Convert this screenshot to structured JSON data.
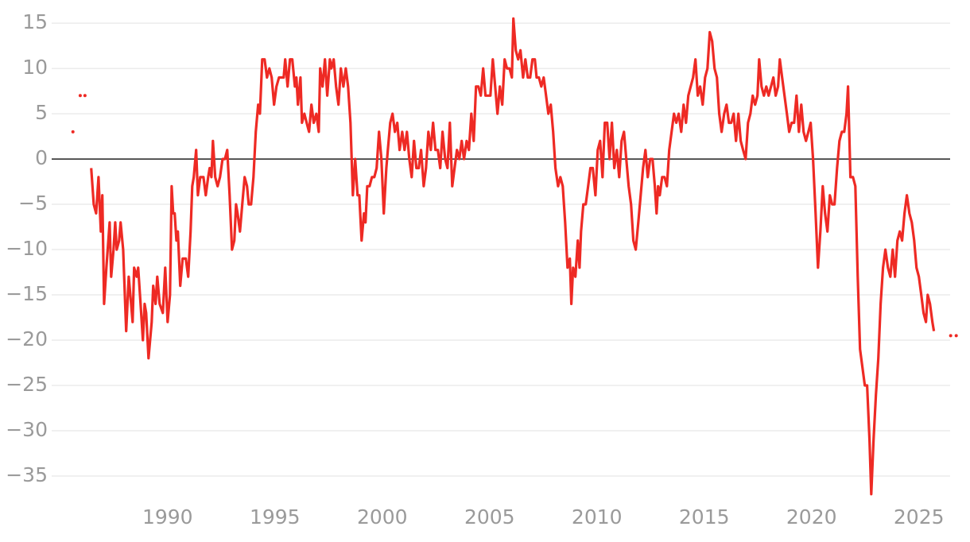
{
  "chart_data": {
    "type": "line",
    "xlim": [
      1984.6,
      2026.9
    ],
    "xticks": [
      1990,
      1995,
      2000,
      2005,
      2010,
      2015,
      2020,
      2025
    ],
    "ylim": [
      -37.5,
      16.5
    ],
    "yticks": [
      15,
      10,
      5,
      0,
      {
        "value": -5,
        "label": "−5"
      },
      {
        "value": -10,
        "label": "−10"
      },
      {
        "value": -15,
        "label": "−15"
      },
      {
        "value": -20,
        "label": "−20"
      },
      {
        "value": -25,
        "label": "−25"
      },
      {
        "value": -30,
        "label": "−30"
      },
      {
        "value": -35,
        "label": "−35"
      }
    ],
    "grid": true,
    "zero_line": true,
    "x": [
      1985.59,
      1985.74,
      1985.93,
      1986.04,
      1986.15,
      1986.3,
      1986.44,
      1986.56,
      1986.67,
      1986.78,
      1986.89,
      1986.96,
      1987.04,
      1987.15,
      1987.3,
      1987.37,
      1987.48,
      1987.56,
      1987.63,
      1987.74,
      1987.81,
      1987.93,
      1988.07,
      1988.19,
      1988.3,
      1988.37,
      1988.44,
      1988.56,
      1988.63,
      1988.74,
      1988.85,
      1988.93,
      1989.0,
      1989.11,
      1989.26,
      1989.33,
      1989.44,
      1989.52,
      1989.63,
      1989.78,
      1989.89,
      1990.0,
      1990.11,
      1990.19,
      1990.26,
      1990.33,
      1990.41,
      1990.48,
      1990.59,
      1990.7,
      1990.85,
      1990.96,
      1991.07,
      1991.15,
      1991.22,
      1991.33,
      1991.41,
      1991.52,
      1991.67,
      1991.78,
      1991.89,
      1991.96,
      1992.04,
      1992.11,
      1992.22,
      1992.33,
      1992.44,
      1992.56,
      1992.67,
      1992.78,
      1992.89,
      1993.0,
      1993.11,
      1993.19,
      1993.26,
      1993.37,
      1993.48,
      1993.59,
      1993.7,
      1993.78,
      1993.89,
      1994.0,
      1994.11,
      1994.22,
      1994.3,
      1994.41,
      1994.52,
      1994.63,
      1994.74,
      1994.85,
      1994.96,
      1995.07,
      1995.19,
      1995.3,
      1995.41,
      1995.48,
      1995.59,
      1995.7,
      1995.81,
      1995.93,
      1996.0,
      1996.07,
      1996.19,
      1996.26,
      1996.37,
      1996.48,
      1996.59,
      1996.7,
      1996.81,
      1996.93,
      1997.04,
      1997.11,
      1997.22,
      1997.33,
      1997.44,
      1997.56,
      1997.63,
      1997.74,
      1997.85,
      1997.96,
      1998.07,
      1998.19,
      1998.3,
      1998.41,
      1998.52,
      1998.63,
      1998.74,
      1998.85,
      1998.93,
      1999.04,
      1999.15,
      1999.22,
      1999.3,
      1999.41,
      1999.52,
      1999.63,
      1999.74,
      1999.85,
      1999.96,
      2000.07,
      2000.19,
      2000.26,
      2000.37,
      2000.48,
      2000.59,
      2000.7,
      2000.81,
      2000.93,
      2001.04,
      2001.15,
      2001.26,
      2001.37,
      2001.48,
      2001.59,
      2001.7,
      2001.81,
      2001.93,
      2002.04,
      2002.15,
      2002.26,
      2002.37,
      2002.48,
      2002.59,
      2002.7,
      2002.81,
      2002.93,
      2003.04,
      2003.15,
      2003.26,
      2003.37,
      2003.48,
      2003.59,
      2003.7,
      2003.81,
      2003.93,
      2004.04,
      2004.15,
      2004.26,
      2004.37,
      2004.48,
      2004.59,
      2004.7,
      2004.81,
      2004.93,
      2005.04,
      2005.15,
      2005.26,
      2005.37,
      2005.48,
      2005.59,
      2005.7,
      2005.81,
      2005.93,
      2006.04,
      2006.11,
      2006.22,
      2006.33,
      2006.44,
      2006.56,
      2006.67,
      2006.78,
      2006.89,
      2007.0,
      2007.11,
      2007.19,
      2007.3,
      2007.41,
      2007.52,
      2007.63,
      2007.74,
      2007.85,
      2007.96,
      2008.07,
      2008.19,
      2008.3,
      2008.41,
      2008.52,
      2008.63,
      2008.74,
      2008.81,
      2008.89,
      2009.0,
      2009.11,
      2009.19,
      2009.26,
      2009.37,
      2009.48,
      2009.59,
      2009.7,
      2009.81,
      2009.93,
      2010.04,
      2010.15,
      2010.26,
      2010.37,
      2010.48,
      2010.59,
      2010.7,
      2010.81,
      2010.93,
      2011.04,
      2011.15,
      2011.26,
      2011.37,
      2011.48,
      2011.59,
      2011.7,
      2011.81,
      2011.93,
      2012.04,
      2012.15,
      2012.26,
      2012.37,
      2012.48,
      2012.59,
      2012.7,
      2012.78,
      2012.85,
      2012.93,
      2013.04,
      2013.15,
      2013.26,
      2013.37,
      2013.48,
      2013.59,
      2013.7,
      2013.81,
      2013.93,
      2014.04,
      2014.15,
      2014.26,
      2014.37,
      2014.48,
      2014.59,
      2014.7,
      2014.81,
      2014.93,
      2015.04,
      2015.15,
      2015.26,
      2015.37,
      2015.48,
      2015.59,
      2015.7,
      2015.81,
      2015.93,
      2016.04,
      2016.15,
      2016.26,
      2016.37,
      2016.48,
      2016.59,
      2016.7,
      2016.81,
      2016.93,
      2017.04,
      2017.15,
      2017.26,
      2017.37,
      2017.48,
      2017.56,
      2017.67,
      2017.78,
      2017.89,
      2018.0,
      2018.11,
      2018.22,
      2018.33,
      2018.44,
      2018.52,
      2018.63,
      2018.74,
      2018.85,
      2018.96,
      2019.07,
      2019.19,
      2019.3,
      2019.41,
      2019.52,
      2019.63,
      2019.74,
      2019.85,
      2019.96,
      2020.07,
      2020.19,
      2020.3,
      2020.41,
      2020.52,
      2020.63,
      2020.74,
      2020.85,
      2020.96,
      2021.07,
      2021.19,
      2021.3,
      2021.41,
      2021.52,
      2021.63,
      2021.7,
      2021.81,
      2021.93,
      2022.04,
      2022.15,
      2022.26,
      2022.37,
      2022.48,
      2022.59,
      2022.7,
      2022.78,
      2022.89,
      2023.0,
      2023.11,
      2023.22,
      2023.33,
      2023.44,
      2023.56,
      2023.67,
      2023.78,
      2023.89,
      2024.0,
      2024.11,
      2024.22,
      2024.33,
      2024.44,
      2024.56,
      2024.67,
      2024.78,
      2024.89,
      2025.0,
      2025.11,
      2025.22,
      2025.33,
      2025.41,
      2025.52,
      2025.63,
      2025.7,
      2025.8,
      2026.48,
      2026.6,
      2026.74
    ],
    "series": [
      {
        "color": "#ee2a24",
        "values": [
          3,
          null,
          7,
          null,
          7,
          null,
          -1,
          -5,
          -6,
          -2,
          -8,
          -4,
          -16,
          -12,
          -7,
          -13,
          -10,
          -7,
          -10,
          -9,
          -7,
          -10,
          -19,
          -13,
          -16,
          -18,
          -12,
          -13,
          -12,
          -16,
          -20,
          -16,
          -17,
          -22,
          -18,
          -14,
          -16,
          -13,
          -16,
          -17,
          -12,
          -18,
          -15,
          -3,
          -6,
          -6,
          -9,
          -8,
          -14,
          -11,
          -11,
          -13,
          -8,
          -3,
          -2,
          1,
          -4,
          -2,
          -2,
          -4,
          -2,
          -1,
          -2,
          2,
          -2,
          -3,
          -2,
          0,
          0,
          1,
          -4,
          -10,
          -9,
          -5,
          -6,
          -8,
          -5,
          -2,
          -3,
          -5,
          -5,
          -2,
          3,
          6,
          5,
          11,
          11,
          9,
          10,
          9,
          6,
          8,
          9,
          9,
          9,
          11,
          8,
          11,
          11,
          8,
          9,
          6,
          9,
          4,
          5,
          4,
          3,
          6,
          4,
          5,
          3,
          10,
          8,
          11,
          7,
          11,
          10,
          11,
          8,
          6,
          10,
          8,
          10,
          8,
          4,
          -4,
          0,
          -4,
          -4,
          -9,
          -6,
          -7,
          -3,
          -3,
          -2,
          -2,
          -1,
          3,
          0,
          -6,
          -1,
          1,
          4,
          5,
          3,
          4,
          1,
          3,
          1,
          3,
          0,
          -2,
          2,
          -1,
          -1,
          1,
          -3,
          -1,
          3,
          1,
          4,
          1,
          1,
          -1,
          3,
          0,
          -1,
          4,
          -3,
          -1,
          1,
          0,
          2,
          0,
          2,
          1,
          5,
          2,
          8,
          8,
          7,
          10,
          7,
          7,
          7,
          11,
          8,
          5,
          8,
          6,
          11,
          10,
          10,
          9,
          15.5,
          12,
          11,
          12,
          9,
          11,
          9,
          9,
          11,
          11,
          9,
          9,
          8,
          9,
          7,
          5,
          6,
          3,
          -1,
          -3,
          -2,
          -3,
          -7,
          -12,
          -11,
          -16,
          -12,
          -13,
          -9,
          -12,
          -8,
          -5,
          -5,
          -3,
          -1,
          -1,
          -4,
          1,
          2,
          -2,
          4,
          4,
          0,
          4,
          -1,
          1,
          -2,
          2,
          3,
          0,
          -3,
          -5,
          -9,
          -10,
          -7,
          -4,
          -1,
          1,
          -2,
          0,
          0,
          -3,
          -6,
          -3,
          -4,
          -2,
          -2,
          -3,
          1,
          3,
          5,
          4,
          5,
          3,
          6,
          4,
          7,
          8,
          9,
          11,
          7,
          8,
          6,
          9,
          10,
          14,
          13,
          10,
          9,
          5,
          3,
          5,
          6,
          4,
          4,
          5,
          2,
          5,
          2,
          1,
          0,
          4,
          5,
          7,
          6,
          7,
          11,
          8,
          7,
          8,
          7,
          8,
          9,
          7,
          8,
          11,
          9,
          7,
          5,
          3,
          4,
          4,
          7,
          3,
          6,
          3,
          2,
          3,
          4,
          0,
          -6,
          -12,
          -8,
          -3,
          -6,
          -8,
          -4,
          -5,
          -5,
          -1,
          2,
          3,
          3,
          5,
          8,
          -2,
          -2,
          -3,
          -13,
          -21,
          -23,
          -25,
          -25,
          -31,
          -37,
          -31,
          -26,
          -22,
          -16,
          -12,
          -10,
          -12,
          -13,
          -10,
          -13,
          -9,
          -8,
          -9,
          -6,
          -4,
          -6,
          -7,
          -9,
          -12,
          -13,
          -15,
          -17,
          -18,
          -15,
          -16,
          -18,
          -19,
          null,
          -19.5,
          null,
          -19.5
        ]
      }
    ]
  }
}
